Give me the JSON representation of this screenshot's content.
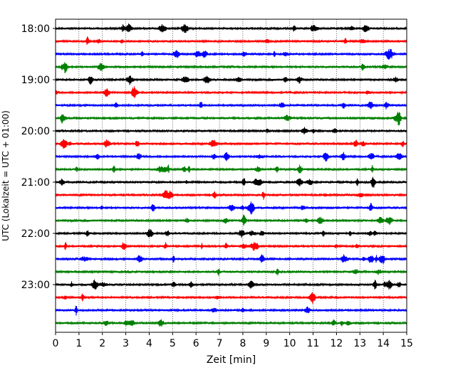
{
  "chart_data": {
    "type": "line",
    "title": "",
    "xlabel": "Zeit  [min]",
    "ylabel": "UTC (Lokalzeit = UTC + 01:00)",
    "xlim": [
      0,
      15
    ],
    "xticks": [
      0,
      1,
      2,
      3,
      4,
      5,
      6,
      7,
      8,
      9,
      10,
      11,
      12,
      13,
      14,
      15
    ],
    "grid": "vertical dotted",
    "legend": "none",
    "y_tick_labels": [
      "18:00",
      "19:00",
      "20:00",
      "21:00",
      "22:00",
      "23:00"
    ],
    "trace_colors": [
      "#000000",
      "#ff0000",
      "#0000ff",
      "#008000"
    ],
    "traces": [
      {
        "start": "18:00",
        "color": "black"
      },
      {
        "start": "18:15",
        "color": "red"
      },
      {
        "start": "18:30",
        "color": "blue"
      },
      {
        "start": "18:45",
        "color": "green"
      },
      {
        "start": "19:00",
        "color": "black"
      },
      {
        "start": "19:15",
        "color": "red"
      },
      {
        "start": "19:30",
        "color": "blue"
      },
      {
        "start": "19:45",
        "color": "green"
      },
      {
        "start": "20:00",
        "color": "black"
      },
      {
        "start": "20:15",
        "color": "red"
      },
      {
        "start": "20:30",
        "color": "blue"
      },
      {
        "start": "20:45",
        "color": "green"
      },
      {
        "start": "21:00",
        "color": "black"
      },
      {
        "start": "21:15",
        "color": "red"
      },
      {
        "start": "21:30",
        "color": "blue"
      },
      {
        "start": "21:45",
        "color": "green"
      },
      {
        "start": "22:00",
        "color": "black"
      },
      {
        "start": "22:15",
        "color": "red"
      },
      {
        "start": "22:30",
        "color": "blue"
      },
      {
        "start": "22:45",
        "color": "green"
      },
      {
        "start": "23:00",
        "color": "black"
      },
      {
        "start": "23:15",
        "color": "red"
      },
      {
        "start": "23:30",
        "color": "blue"
      },
      {
        "start": "23:45",
        "color": "green"
      }
    ]
  }
}
